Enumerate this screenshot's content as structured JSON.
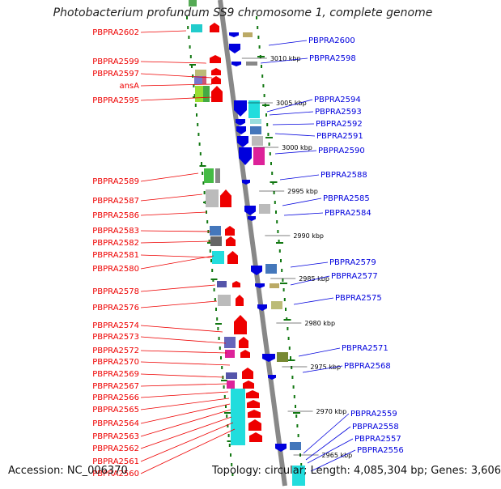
{
  "title": "Photobacterium profundum SS9 chromosome 1, complete genome",
  "footer": {
    "accession": "Accession: NC_006370",
    "stats": "Topology: circular; Length: 4,085,304 bp; Genes: 3,606"
  },
  "colors": {
    "forward": "#ee0000",
    "reverse": "#0000dd",
    "backbone": "#888888",
    "dots": "#117711"
  },
  "kbp_marks": [
    "3010 kbp",
    "3005 kbp",
    "3000 kbp",
    "2995 kbp",
    "2990 kbp",
    "2985 kbp",
    "2980 kbp",
    "2975 kbp",
    "2970 kbp",
    "2965 kbp"
  ],
  "left_genes": [
    "PBPRA2602",
    "PBPRA2599",
    "PBPRA2597",
    "ansA",
    "PBPRA2595",
    "PBPRA2589",
    "PBPRA2587",
    "PBPRA2586",
    "PBPRA2583",
    "PBPRA2582",
    "PBPRA2581",
    "PBPRA2580",
    "PBPRA2578",
    "PBPRA2576",
    "PBPRA2574",
    "PBPRA2573",
    "PBPRA2572",
    "PBPRA2570",
    "PBPRA2569",
    "PBPRA2567",
    "PBPRA2566",
    "PBPRA2565",
    "PBPRA2564",
    "PBPRA2563",
    "PBPRA2562",
    "PBPRA2561",
    "PBPRA2560"
  ],
  "right_genes": [
    "PBPRA2600",
    "PBPRA2598",
    "PBPRA2594",
    "PBPRA2593",
    "PBPRA2592",
    "PBPRA2591",
    "PBPRA2590",
    "PBPRA2588",
    "PBPRA2585",
    "PBPRA2584",
    "PBPRA2579",
    "PBPRA2577",
    "PBPRA2575",
    "PBPRA2571",
    "PBPRA2568",
    "PBPRA2559",
    "PBPRA2558",
    "PBPRA2557",
    "PBPRA2556"
  ]
}
